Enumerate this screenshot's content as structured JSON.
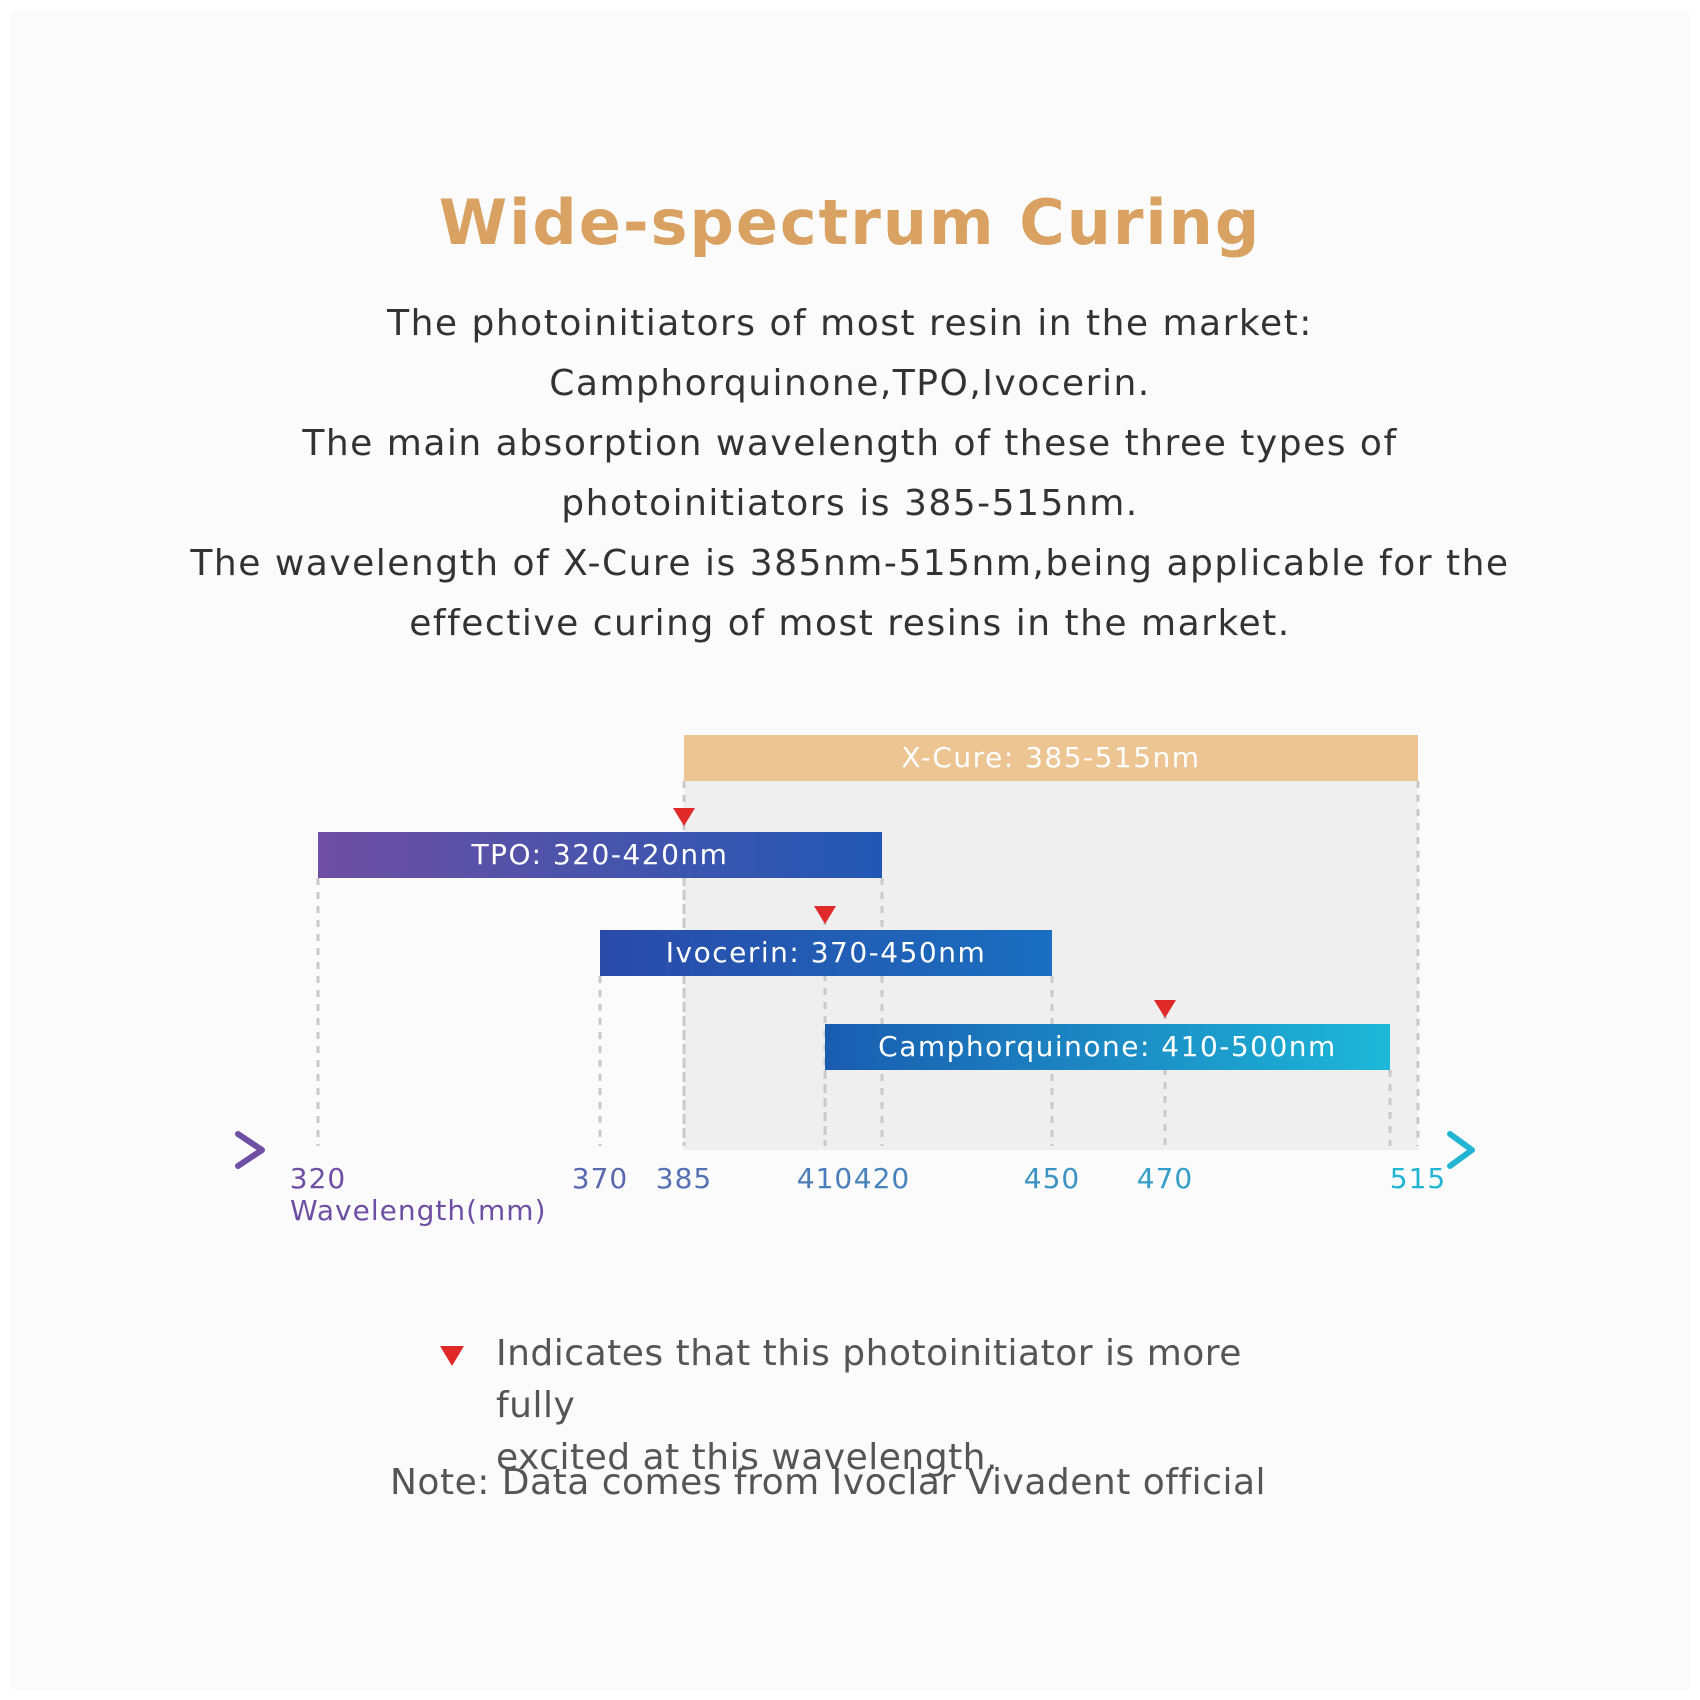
{
  "title": "Wide-spectrum Curing",
  "description_lines": [
    "The photoinitiators of most resin in the market:",
    "Camphorquinone,TPO,Ivocerin.",
    "The main absorption wavelength of these three types of",
    "photoinitiators is 385-515nm.",
    "The wavelength of X-Cure is 385nm-515nm,being applicable for the",
    "effective curing of most resins in the market."
  ],
  "colors": {
    "title": "#d9a262",
    "xcure_bar": "#edc593",
    "xcure_area": "#efefef",
    "tpo_start": "#6f4fa3",
    "tpo_end": "#2158b4",
    "ivocerin_start": "#2a4aa8",
    "ivocerin_end": "#1a6fc0",
    "cq_start": "#1a5cb0",
    "cq_end": "#1db8d8",
    "axis_start": "#6f4fa3",
    "axis_end": "#22b5d3",
    "marker": "#e02a2a",
    "guide": "#c9c9c9"
  },
  "chart_data": {
    "type": "range_bar",
    "xlabel": "Wavelength(mm)",
    "x_ticks": [
      320,
      370,
      385,
      410,
      420,
      450,
      470,
      515
    ],
    "series": [
      {
        "name": "X-Cure",
        "label": "X-Cure: 385-515nm",
        "start": 385,
        "end": 515
      },
      {
        "name": "TPO",
        "label": "TPO: 320-420nm",
        "start": 320,
        "end": 420,
        "peak": 385
      },
      {
        "name": "Ivocerin",
        "label": "Ivocerin: 370-450nm",
        "start": 370,
        "end": 450,
        "peak": 410
      },
      {
        "name": "Camphorquinone",
        "label": "Camphorquinone: 410-500nm",
        "start": 410,
        "end": 500,
        "peak": 470
      }
    ]
  },
  "legend": {
    "text_line1": "Indicates that this photoinitiator is more fully",
    "text_line2": "excited at this wavelength."
  },
  "note": "Note: Data comes from Ivoclar Vivadent official"
}
